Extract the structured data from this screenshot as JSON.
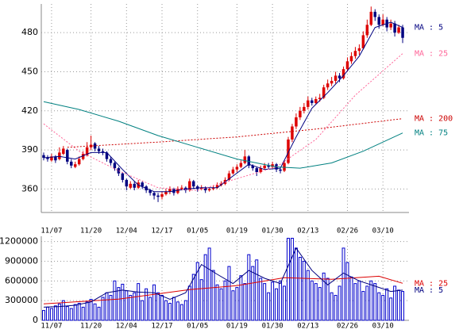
{
  "chart_data": [
    {
      "type": "candlestick",
      "open": [
        386,
        384,
        382,
        385,
        383,
        387,
        390,
        381,
        377,
        379,
        383,
        386,
        392,
        395,
        391,
        389,
        388,
        383,
        380,
        376,
        372,
        367,
        361,
        364,
        361,
        365,
        362,
        359,
        357,
        355,
        354,
        356,
        358,
        360,
        357,
        360,
        361,
        359,
        366,
        362,
        360,
        361,
        359,
        360,
        361,
        363,
        364,
        367,
        372,
        375,
        377,
        380,
        385,
        378,
        376,
        373,
        376,
        378,
        377,
        379,
        375,
        374,
        380,
        398,
        408,
        415,
        420,
        423,
        428,
        426,
        429,
        430,
        438,
        441,
        443,
        447,
        445,
        452,
        458,
        462,
        466,
        468,
        478,
        486,
        496,
        492,
        486,
        490,
        484,
        487,
        480,
        484
      ],
      "high": [
        388,
        386,
        387,
        386,
        392,
        393,
        391,
        383,
        381,
        385,
        389,
        396,
        401,
        396,
        393,
        391,
        389,
        385,
        381,
        377,
        373,
        368,
        366,
        366,
        367,
        366,
        363,
        360,
        358,
        357,
        358,
        360,
        362,
        361,
        362,
        363,
        362,
        368,
        367,
        363,
        363,
        362,
        361,
        363,
        365,
        366,
        369,
        374,
        377,
        379,
        382,
        390,
        386,
        379,
        377,
        378,
        380,
        380,
        381,
        380,
        376,
        382,
        400,
        410,
        418,
        423,
        426,
        431,
        430,
        431,
        433,
        440,
        444,
        446,
        450,
        449,
        454,
        461,
        465,
        469,
        471,
        481,
        490,
        500,
        498,
        494,
        494,
        492,
        490,
        489,
        486,
        486
      ],
      "low": [
        382,
        381,
        381,
        380,
        382,
        386,
        379,
        376,
        376,
        378,
        382,
        385,
        390,
        389,
        387,
        386,
        381,
        378,
        374,
        370,
        365,
        359,
        360,
        359,
        360,
        360,
        357,
        355,
        352,
        350,
        352,
        355,
        356,
        355,
        356,
        359,
        357,
        358,
        360,
        358,
        359,
        357,
        358,
        359,
        360,
        362,
        363,
        366,
        371,
        373,
        376,
        379,
        376,
        374,
        370,
        372,
        375,
        375,
        376,
        373,
        372,
        373,
        379,
        396,
        406,
        413,
        418,
        421,
        424,
        425,
        427,
        429,
        436,
        439,
        441,
        442,
        444,
        450,
        456,
        460,
        463,
        467,
        476,
        485,
        489,
        483,
        485,
        481,
        482,
        477,
        479,
        472
      ],
      "close": [
        384,
        383,
        385,
        382,
        388,
        391,
        381,
        378,
        379,
        383,
        387,
        392,
        394,
        391,
        389,
        388,
        383,
        380,
        376,
        372,
        367,
        362,
        364,
        361,
        365,
        362,
        359,
        357,
        355,
        354,
        356,
        358,
        360,
        357,
        360,
        361,
        359,
        366,
        362,
        360,
        361,
        359,
        360,
        361,
        363,
        364,
        367,
        372,
        375,
        377,
        380,
        385,
        378,
        376,
        373,
        376,
        378,
        377,
        379,
        375,
        374,
        380,
        398,
        408,
        415,
        420,
        423,
        428,
        426,
        429,
        430,
        438,
        441,
        443,
        447,
        445,
        452,
        458,
        462,
        466,
        468,
        478,
        486,
        496,
        492,
        486,
        490,
        484,
        487,
        480,
        484,
        476
      ],
      "up_color": "#dd0000",
      "down_color": "#000080",
      "xlim": [
        -0.6,
        92.6
      ],
      "xticks": [
        {
          "value": 2,
          "label": "11/07"
        },
        {
          "value": 12,
          "label": "11/20"
        },
        {
          "value": 21,
          "label": "12/04"
        },
        {
          "value": 30,
          "label": "12/17"
        },
        {
          "value": 39,
          "label": "01/05"
        },
        {
          "value": 49,
          "label": "01/19"
        },
        {
          "value": 58,
          "label": "01/30"
        },
        {
          "value": 67,
          "label": "02/13"
        },
        {
          "value": 77,
          "label": "02/26"
        },
        {
          "value": 86,
          "label": "03/10"
        }
      ],
      "ylim": [
        342,
        502
      ],
      "yticks": [
        360,
        390,
        420,
        450,
        480
      ],
      "grid": true,
      "series": [
        {
          "name": "MA : 5",
          "color": "#000080",
          "dashed": false,
          "x": [
            0,
            4,
            8,
            12,
            16,
            20,
            24,
            28,
            32,
            36,
            40,
            44,
            48,
            52,
            56,
            60,
            64,
            68,
            72,
            76,
            80,
            84,
            88,
            91
          ],
          "values": [
            384,
            385,
            383,
            388,
            388,
            375,
            363,
            358,
            358,
            360,
            361,
            361,
            370,
            379,
            375,
            376,
            400,
            422,
            434,
            447,
            462,
            484,
            488,
            484
          ]
        },
        {
          "name": "MA : 25",
          "color": "#ff6699",
          "dashed": true,
          "x": [
            0,
            9,
            19,
            29,
            39,
            49,
            59,
            69,
            79,
            91
          ],
          "values": [
            410,
            389,
            374,
            361,
            359,
            368,
            377,
            398,
            432,
            464
          ]
        },
        {
          "name": "MA : 200",
          "color": "#cc0000",
          "dashed": true,
          "x": [
            6,
            29,
            49,
            69,
            91
          ],
          "values": [
            392,
            396,
            400,
            406,
            414
          ]
        },
        {
          "name": "MA : 75",
          "color": "#008080",
          "dashed": false,
          "x": [
            0,
            9,
            19,
            29,
            39,
            49,
            59,
            65,
            73,
            81,
            91
          ],
          "values": [
            427,
            421,
            412,
            401,
            392,
            383,
            377,
            376,
            380,
            389,
            403
          ]
        }
      ]
    },
    {
      "type": "bar",
      "values": [
        150000,
        200000,
        180000,
        220000,
        250000,
        300000,
        210000,
        180000,
        240000,
        260000,
        200000,
        280000,
        320000,
        250000,
        200000,
        350000,
        420000,
        380000,
        600000,
        500000,
        550000,
        450000,
        380000,
        420000,
        560000,
        300000,
        480000,
        350000,
        540000,
        420000,
        380000,
        300000,
        260000,
        350000,
        280000,
        240000,
        300000,
        520000,
        700000,
        880000,
        620000,
        1000000,
        1100000,
        760000,
        540000,
        480000,
        600000,
        820000,
        450000,
        500000,
        680000,
        560000,
        1000000,
        820000,
        920000,
        640000,
        560000,
        420000,
        580000,
        480000,
        600000,
        520000,
        1250000,
        1250000,
        1100000,
        960000,
        900000,
        760000,
        600000,
        560000,
        500000,
        720000,
        640000,
        420000,
        380000,
        520000,
        1100000,
        880000,
        660000,
        560000,
        600000,
        440000,
        520000,
        600000,
        560000,
        420000,
        380000,
        480000,
        340000,
        520000,
        460000,
        440000
      ],
      "color": "#0000cc",
      "xlim": [
        -0.6,
        92.6
      ],
      "xticks": [
        {
          "value": 2,
          "label": "11/07"
        },
        {
          "value": 12,
          "label": "11/20"
        },
        {
          "value": 21,
          "label": "12/04"
        },
        {
          "value": 30,
          "label": "12/17"
        },
        {
          "value": 39,
          "label": "01/05"
        },
        {
          "value": 49,
          "label": "01/19"
        },
        {
          "value": 58,
          "label": "01/30"
        },
        {
          "value": 67,
          "label": "02/13"
        },
        {
          "value": 77,
          "label": "02/26"
        },
        {
          "value": 86,
          "label": "03/10"
        }
      ],
      "ylim": [
        0,
        1280000
      ],
      "yticks": [
        0,
        300000,
        600000,
        900000,
        1200000
      ],
      "grid": true,
      "series": [
        {
          "name": "MA : 25",
          "color": "#dd0000",
          "dashed": false,
          "x": [
            0,
            19,
            37,
            49,
            61,
            73,
            85,
            91
          ],
          "values": [
            250000,
            324000,
            468000,
            528000,
            650000,
            624000,
            672000,
            564000
          ]
        },
        {
          "name": "MA : 5",
          "color": "#000080",
          "dashed": false,
          "x": [
            0,
            4,
            8,
            12,
            16,
            20,
            24,
            28,
            32,
            36,
            40,
            44,
            48,
            52,
            56,
            60,
            64,
            68,
            72,
            76,
            80,
            84,
            88,
            91
          ],
          "values": [
            200000,
            210000,
            230000,
            280000,
            420000,
            460000,
            430000,
            420000,
            320000,
            420000,
            850000,
            700000,
            560000,
            760000,
            640000,
            560000,
            1100000,
            760000,
            540000,
            720000,
            600000,
            520000,
            440000,
            460000
          ]
        }
      ]
    }
  ]
}
